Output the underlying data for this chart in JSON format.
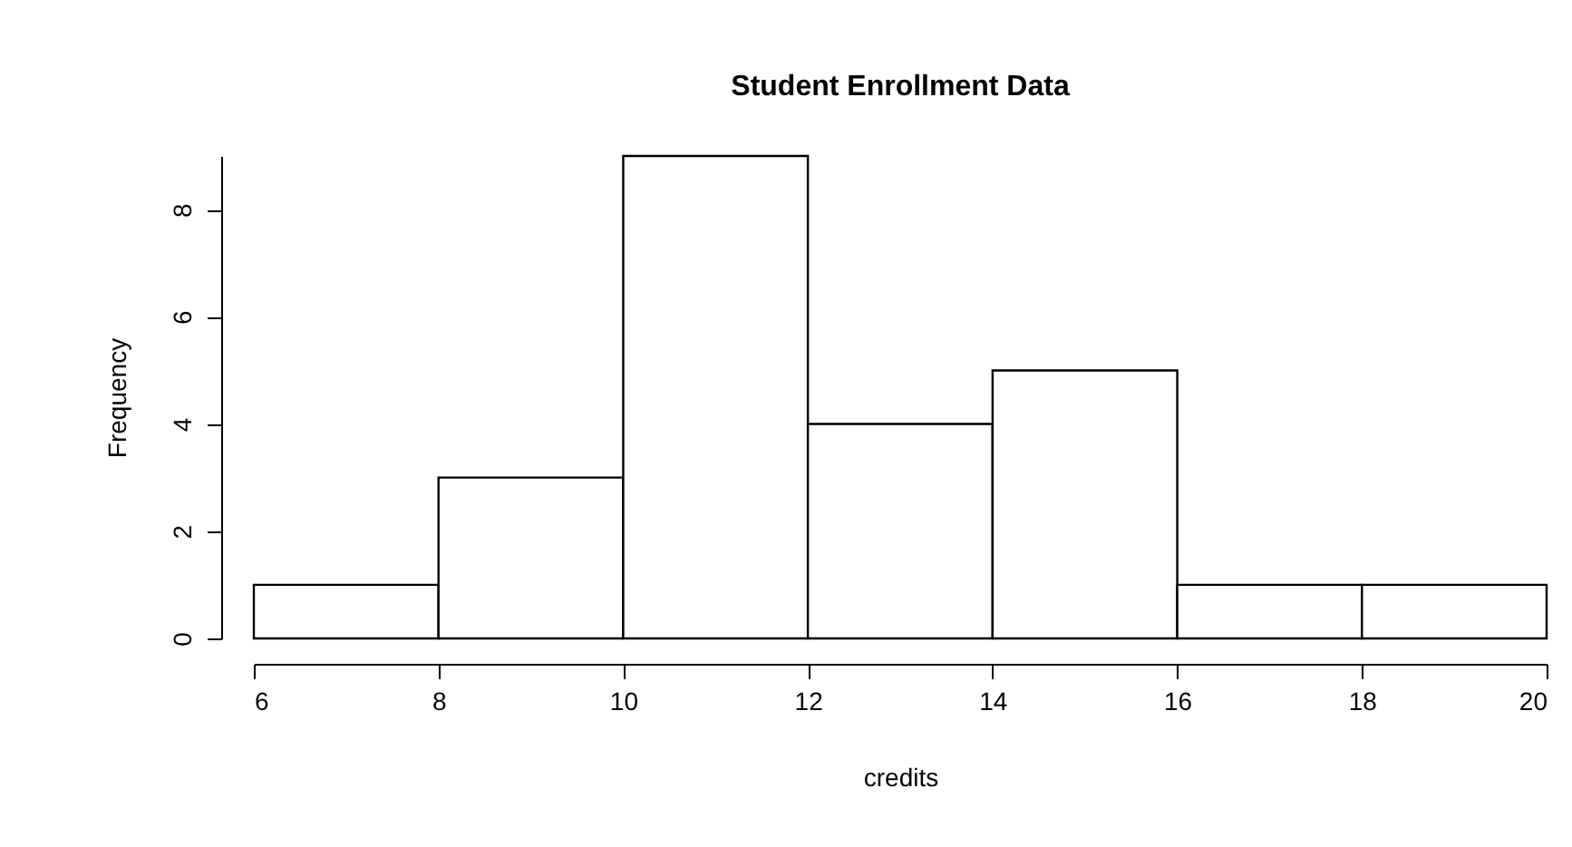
{
  "chart_data": {
    "type": "histogram",
    "title": "Student Enrollment Data",
    "xlabel": "credits",
    "ylabel": "Frequency",
    "bins": [
      6,
      8,
      10,
      12,
      14,
      16,
      18,
      20
    ],
    "values": [
      1,
      3,
      9,
      4,
      5,
      1,
      1
    ],
    "color": "#ffffff",
    "xlim": [
      6,
      20
    ],
    "xticks": [
      6,
      8,
      10,
      12,
      14,
      16,
      18,
      20
    ],
    "ylim": [
      0,
      9
    ],
    "yticks": [
      0,
      2,
      4,
      6,
      8
    ],
    "grid": false
  }
}
